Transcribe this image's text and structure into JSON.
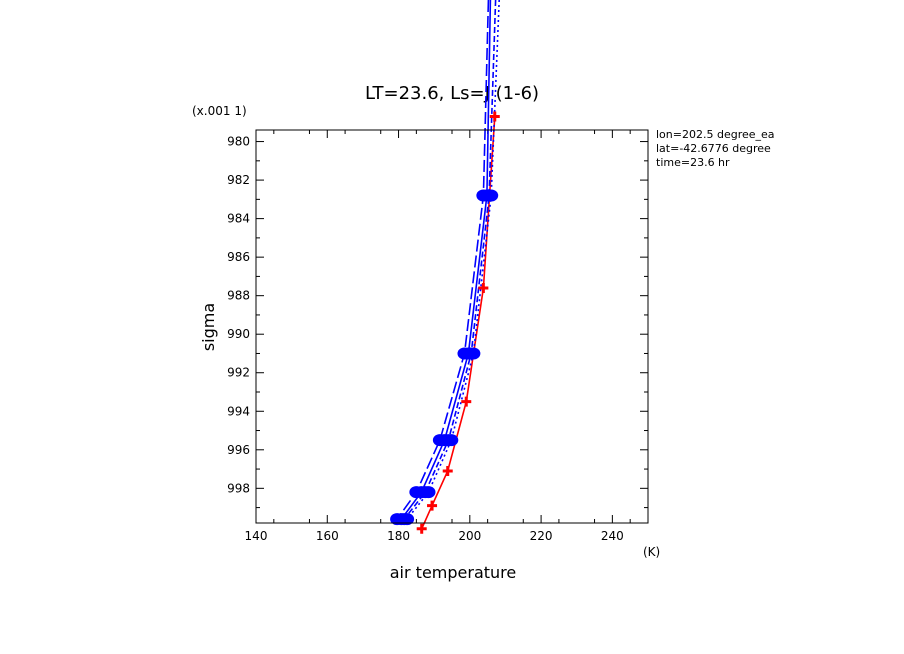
{
  "chart_data": {
    "type": "line",
    "title": "LT=23.6, Ls=J (1-6)",
    "xlabel": "air temperature",
    "ylabel": "sigma",
    "x_units": "(K)",
    "y_scale_note": "(x.001 1)",
    "xlim": [
      140,
      250
    ],
    "ylim": [
      979.4,
      999.8
    ],
    "y_inverted": true,
    "x_ticks": [
      140,
      160,
      180,
      200,
      220,
      240
    ],
    "y_ticks": [
      980,
      982,
      984,
      986,
      988,
      990,
      992,
      994,
      996,
      998
    ],
    "annotations": [
      "lon=202.5 degree_ea",
      "lat=-42.6776 degree",
      "time=23.6 hr"
    ],
    "series": [
      {
        "color": "#ff0000",
        "style": "solid",
        "marker": "plus",
        "x": [
          207.0,
          203.8,
          199.0,
          193.8,
          189.4,
          186.5
        ],
        "y": [
          978.7,
          987.6,
          993.5,
          997.1,
          998.9,
          1000.1
        ]
      },
      {
        "color": "#0000ff",
        "style": "solid",
        "marker": "circle",
        "x": [
          204.8,
          199.6,
          192.9,
          186.4,
          180.8
        ],
        "y": [
          982.8,
          991.0,
          995.5,
          998.2,
          999.6
        ]
      },
      {
        "color": "#0000ff",
        "style": "longdash",
        "marker": "circle",
        "x": [
          203.8,
          198.5,
          191.6,
          185.0,
          179.6
        ],
        "y": [
          982.8,
          991.0,
          995.5,
          998.2,
          999.6
        ]
      },
      {
        "color": "#0000ff",
        "style": "dash",
        "marker": "circle",
        "x": [
          205.4,
          200.4,
          194.0,
          187.5,
          181.6
        ],
        "y": [
          982.8,
          991.0,
          995.5,
          998.2,
          999.6
        ]
      },
      {
        "color": "#0000ff",
        "style": "dotted",
        "marker": "circle",
        "x": [
          206.0,
          201.0,
          194.8,
          188.4,
          182.4
        ],
        "y": [
          982.8,
          991.0,
          995.5,
          998.2,
          999.6
        ]
      }
    ]
  }
}
